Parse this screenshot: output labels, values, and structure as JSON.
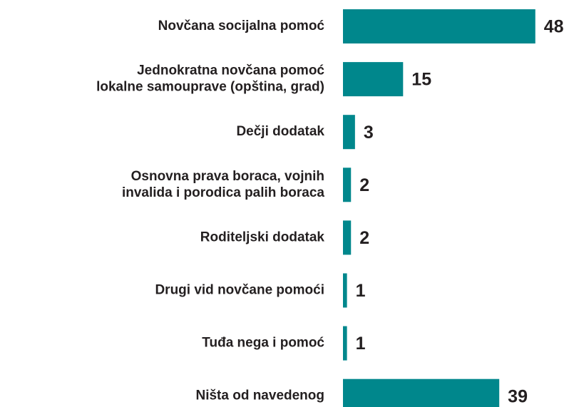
{
  "chart_data": {
    "type": "barh",
    "categories": [
      [
        "Novčana socijalna pomoć"
      ],
      [
        "Jednokratna novčana pomoć",
        "lokalne samouprave (opština, grad)"
      ],
      [
        "Dečji dodatak"
      ],
      [
        "Osnovna prava boraca, vojnih",
        "invalida i porodica palih boraca"
      ],
      [
        "Roditeljski dodatak"
      ],
      [
        "Drugi vid novčane pomoći"
      ],
      [
        "Tuđa nega i pomoć"
      ],
      [
        "Ništa od navedenog"
      ]
    ],
    "values": [
      48,
      15,
      3,
      2,
      2,
      1,
      1,
      39
    ],
    "color": "#00878c",
    "xlim": [
      0,
      50
    ]
  }
}
